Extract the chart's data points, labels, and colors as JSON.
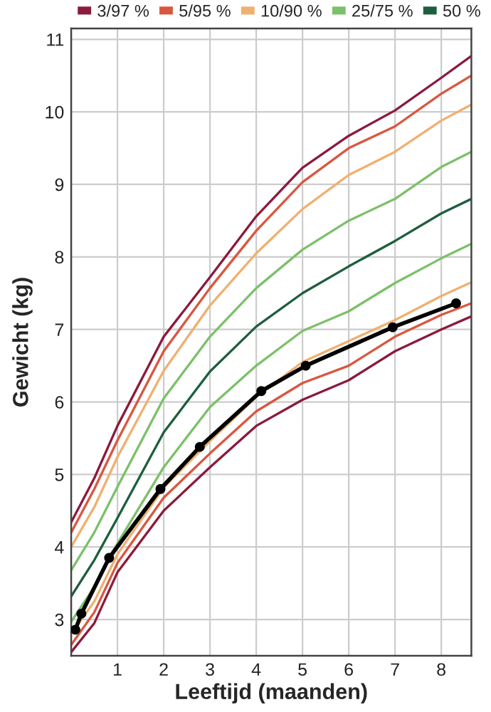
{
  "chart_data": {
    "type": "line",
    "xlabel": "Leeftijd (maanden)",
    "ylabel": "Gewicht (kg)",
    "x": [
      0,
      0.5,
      1,
      2,
      3,
      4,
      5,
      6,
      7,
      8,
      8.65
    ],
    "series": [
      {
        "name": "3/97 %",
        "color": "#8b1a3c",
        "values": [
          4.34,
          4.95,
          5.67,
          6.9,
          7.72,
          8.56,
          9.23,
          9.67,
          10.02,
          10.47,
          10.77
        ]
      },
      {
        "name": "5/95 %",
        "color": "#d9573f",
        "values": [
          4.2,
          4.8,
          5.47,
          6.7,
          7.57,
          8.36,
          9.03,
          9.5,
          9.8,
          10.25,
          10.5
        ]
      },
      {
        "name": "10/90 %",
        "color": "#f0b070",
        "values": [
          4.0,
          4.55,
          5.24,
          6.43,
          7.33,
          8.05,
          8.66,
          9.13,
          9.45,
          9.88,
          10.1
        ]
      },
      {
        "name": "25/75 %",
        "color": "#7cc06a",
        "values": [
          3.68,
          4.2,
          4.83,
          6.05,
          6.9,
          7.57,
          8.1,
          8.5,
          8.8,
          9.24,
          9.45
        ]
      },
      {
        "name": "50 %",
        "color": "#1e5e3e",
        "values": [
          3.32,
          3.82,
          4.4,
          5.58,
          6.42,
          7.04,
          7.5,
          7.87,
          8.22,
          8.6,
          8.8
        ]
      },
      {
        "color": "#7cc06a",
        "values": [
          2.97,
          3.45,
          4.05,
          5.1,
          5.93,
          6.5,
          6.98,
          7.25,
          7.64,
          7.98,
          8.18
        ]
      },
      {
        "color": "#f0b070",
        "values": [
          2.8,
          3.25,
          3.9,
          4.82,
          5.46,
          6.07,
          6.55,
          6.84,
          7.13,
          7.46,
          7.65
        ]
      },
      {
        "color": "#d9573f",
        "values": [
          2.65,
          3.1,
          3.78,
          4.68,
          5.29,
          5.87,
          6.26,
          6.5,
          6.9,
          7.2,
          7.36
        ]
      },
      {
        "color": "#8b1a3c",
        "values": [
          2.55,
          2.95,
          3.65,
          4.5,
          5.1,
          5.67,
          6.03,
          6.3,
          6.7,
          7.0,
          7.18
        ]
      },
      {
        "color": "#000000",
        "marker": "circle",
        "x": [
          0.09,
          0.22,
          0.82,
          1.93,
          2.78,
          4.11,
          5.07,
          6.95,
          8.32
        ],
        "values": [
          2.86,
          3.08,
          3.85,
          4.8,
          5.38,
          6.15,
          6.5,
          7.03,
          7.36
        ]
      }
    ],
    "xlim": [
      0,
      8.65
    ],
    "ylim": [
      2.5,
      11.15
    ],
    "xticks": [
      1,
      2,
      3,
      4,
      5,
      6,
      7,
      8
    ],
    "yticks": [
      3,
      4,
      5,
      6,
      7,
      8,
      9,
      10,
      11
    ],
    "grid": true,
    "legend": "top",
    "marker": "none",
    "line_style": "solid"
  }
}
